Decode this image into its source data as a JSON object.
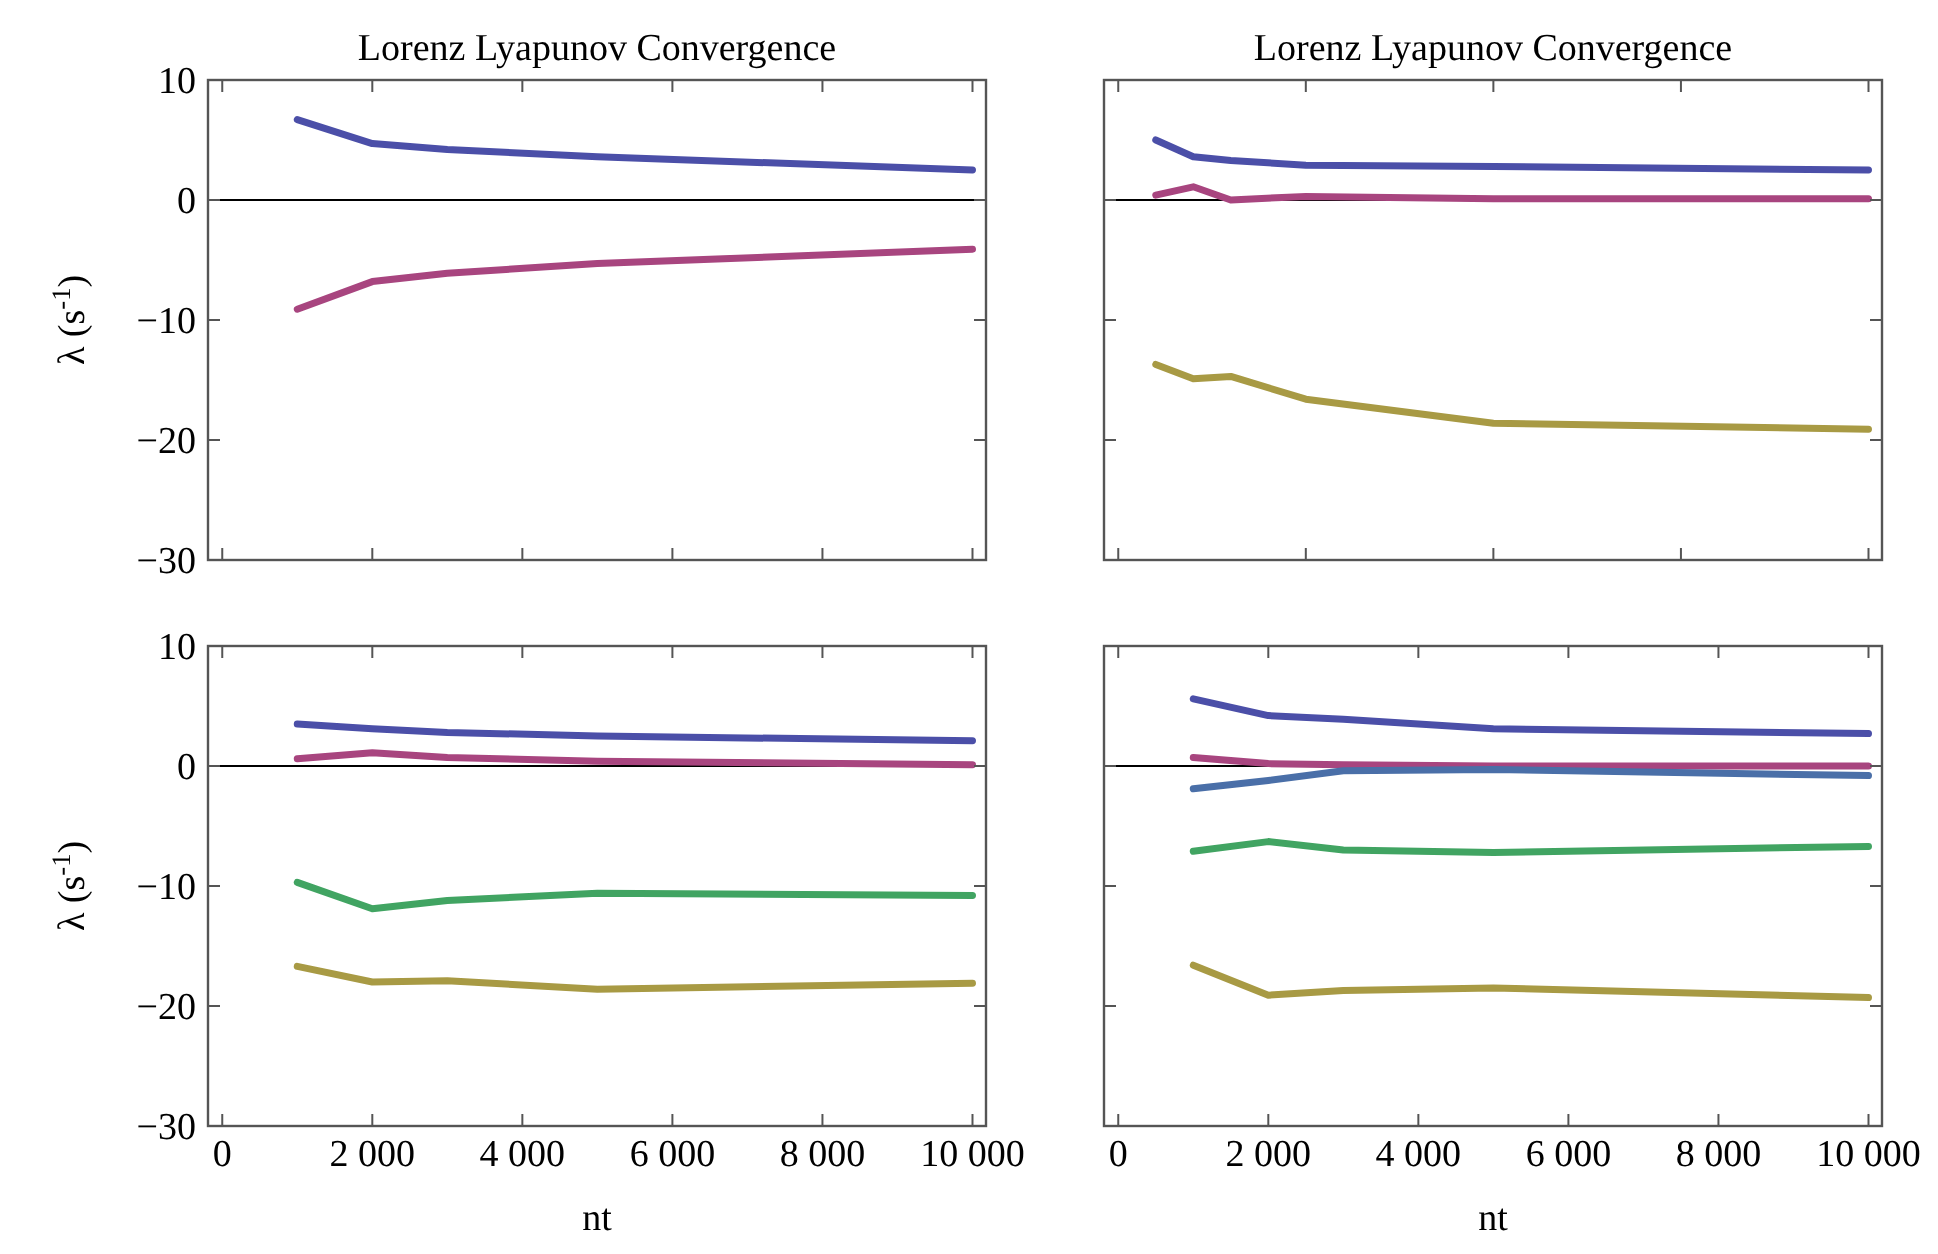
{
  "chart_data": [
    {
      "type": "line",
      "title": "Lorenz Lyapunov Convergence",
      "ylabel": "λ (s$^{-1}$)",
      "x": [
        1000,
        2000,
        3000,
        5000,
        10000
      ],
      "xlim": [
        -190,
        10180
      ],
      "ylim": [
        -30,
        10
      ],
      "xticks": [
        0,
        2000,
        4000,
        6000,
        8000,
        10000
      ],
      "yticks": [
        10,
        0,
        -10,
        -20,
        -30
      ],
      "tick_labels": "y",
      "ref_lines": [
        {
          "axis": "y",
          "value": 0,
          "color": "#000000"
        }
      ],
      "series": [
        {
          "color": "#4b4fa8",
          "values": [
            6.7,
            4.7,
            4.2,
            3.6,
            2.5
          ]
        },
        {
          "color": "#a8457f",
          "values": [
            -9.1,
            -6.8,
            -6.1,
            -5.3,
            -4.1
          ]
        }
      ]
    },
    {
      "type": "line",
      "title": "Lorenz Lyapunov Convergence",
      "x": [
        500,
        1000,
        1500,
        2500,
        5000,
        10000
      ],
      "xlim": [
        -190,
        10180
      ],
      "ylim": [
        -30,
        10
      ],
      "xticks": [
        0,
        2500,
        5000,
        7500,
        10000
      ],
      "yticks": [
        10,
        0,
        -10,
        -20,
        -30
      ],
      "tick_labels": false,
      "ref_lines": [
        {
          "axis": "y",
          "value": 0,
          "color": "#000000"
        }
      ],
      "series": [
        {
          "color": "#4b4fa8",
          "values": [
            5.0,
            3.6,
            3.3,
            2.9,
            2.8,
            2.5
          ]
        },
        {
          "color": "#a8457f",
          "values": [
            0.4,
            1.1,
            0,
            0.3,
            0.1,
            0.1
          ]
        },
        {
          "color": "#a89a44",
          "values": [
            -13.7,
            -14.9,
            -14.7,
            -16.6,
            -18.6,
            -19.1
          ]
        }
      ]
    },
    {
      "type": "line",
      "xlabel": "nt",
      "ylabel": "λ (s$^{-1}$)",
      "x": [
        1000,
        2000,
        3000,
        5000,
        10000
      ],
      "xlim": [
        -190,
        10180
      ],
      "ylim": [
        -30,
        10
      ],
      "xticks": [
        0,
        2000,
        4000,
        6000,
        8000,
        10000
      ],
      "yticks": [
        10,
        0,
        -10,
        -20,
        -30
      ],
      "ref_lines": [
        {
          "axis": "y",
          "value": 0,
          "color": "#000000"
        }
      ],
      "series": [
        {
          "color": "#4b4fa8",
          "values": [
            3.5,
            3.1,
            2.8,
            2.5,
            2.1
          ]
        },
        {
          "color": "#a8457f",
          "values": [
            0.6,
            1.1,
            0.7,
            0.4,
            0.1
          ]
        },
        {
          "color": "#41a462",
          "values": [
            -9.7,
            -11.9,
            -11.2,
            -10.6,
            -10.8
          ]
        },
        {
          "color": "#a89a44",
          "values": [
            -16.7,
            -18.0,
            -17.9,
            -18.6,
            -18.1
          ]
        }
      ]
    },
    {
      "type": "line",
      "xlabel": "nt",
      "x": [
        1000,
        2000,
        3000,
        5000,
        10000
      ],
      "xlim": [
        -190,
        10180
      ],
      "ylim": [
        -30,
        10
      ],
      "xticks": [
        0,
        2000,
        4000,
        6000,
        8000,
        10000
      ],
      "yticks": [
        10,
        0,
        -10,
        -20,
        -30
      ],
      "tick_labels": "x",
      "ref_lines": [
        {
          "axis": "y",
          "value": 0,
          "color": "#000000"
        }
      ],
      "series": [
        {
          "color": "#4b4fa8",
          "values": [
            5.6,
            4.2,
            3.9,
            3.1,
            2.7
          ]
        },
        {
          "color": "#a8457f",
          "values": [
            0.7,
            0.2,
            0.1,
            0,
            0
          ]
        },
        {
          "color": "#4a6fa8",
          "values": [
            -1.9,
            -1.2,
            -0.4,
            -0.3,
            -0.8
          ]
        },
        {
          "color": "#41a462",
          "values": [
            -7.1,
            -6.3,
            -7.0,
            -7.2,
            -6.7
          ]
        },
        {
          "color": "#a89a44",
          "values": [
            -16.6,
            -19.1,
            -18.7,
            -18.5,
            -19.3
          ]
        }
      ]
    }
  ]
}
